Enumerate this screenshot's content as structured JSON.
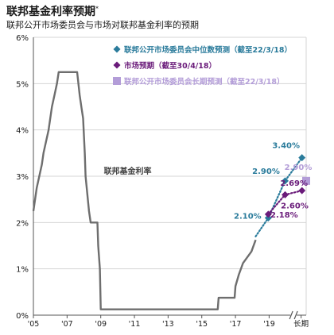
{
  "header": {
    "title": "联邦基金利率预期",
    "title_mark": "*",
    "subtitle": "联邦公开市场委员会与市场对联邦基金利率的预期"
  },
  "chart_data": {
    "type": "line",
    "y_ticks": [
      "0%",
      "1%",
      "2%",
      "3%",
      "4%",
      "5%",
      "6%"
    ],
    "y_range": [
      0,
      6
    ],
    "x_range": [
      2005,
      2021.2
    ],
    "x_ticks": [
      {
        "label": "'05",
        "x": 2005
      },
      {
        "label": "'07",
        "x": 2007
      },
      {
        "label": "'09",
        "x": 2009
      },
      {
        "label": "'11",
        "x": 2011
      },
      {
        "label": "'13",
        "x": 2013
      },
      {
        "label": "'15",
        "x": 2015
      },
      {
        "label": "'17",
        "x": 2017
      },
      {
        "label": "'19",
        "x": 2019
      },
      {
        "label": "长期",
        "x": 2020.9
      }
    ],
    "grid": true,
    "legend_position": "top-right",
    "colors": {
      "fed_funds": "#6e6e6e",
      "fomc": "#2a7b9b",
      "market": "#6a1b7a",
      "longrun": "#b39dd8",
      "text": "#1a1a1a",
      "grid": "#d4d4d4"
    },
    "legend": [
      {
        "label": "联邦公开市场委员会中位数预测（截至22/3/18）",
        "marker": "diamond",
        "color": "#2a7b9b"
      },
      {
        "label": "市场预期（截至30/4/18）",
        "marker": "diamond",
        "color": "#6a1b7a"
      },
      {
        "label": "联邦公开市场委员会长期预测（截至22/3/18）",
        "marker": "square",
        "color": "#b39dd8"
      }
    ],
    "series_label": "联邦基金利率",
    "fed_funds": [
      [
        2005.0,
        2.25
      ],
      [
        2005.1,
        2.5
      ],
      [
        2005.2,
        2.75
      ],
      [
        2005.35,
        3.0
      ],
      [
        2005.5,
        3.25
      ],
      [
        2005.6,
        3.5
      ],
      [
        2005.75,
        3.75
      ],
      [
        2005.9,
        4.0
      ],
      [
        2006.0,
        4.25
      ],
      [
        2006.1,
        4.5
      ],
      [
        2006.25,
        4.75
      ],
      [
        2006.4,
        5.0
      ],
      [
        2006.5,
        5.25
      ],
      [
        2007.6,
        5.25
      ],
      [
        2007.75,
        4.75
      ],
      [
        2007.85,
        4.5
      ],
      [
        2007.95,
        4.25
      ],
      [
        2008.05,
        3.5
      ],
      [
        2008.1,
        3.0
      ],
      [
        2008.3,
        2.25
      ],
      [
        2008.4,
        2.0
      ],
      [
        2008.8,
        2.0
      ],
      [
        2008.85,
        1.5
      ],
      [
        2008.95,
        1.0
      ],
      [
        2009.0,
        0.125
      ],
      [
        2015.95,
        0.125
      ],
      [
        2016.0,
        0.375
      ],
      [
        2016.95,
        0.375
      ],
      [
        2017.0,
        0.625
      ],
      [
        2017.2,
        0.875
      ],
      [
        2017.45,
        1.125
      ],
      [
        2017.95,
        1.375
      ],
      [
        2018.2,
        1.625
      ]
    ],
    "fomc_median": {
      "points": [
        [
          2018.95,
          2.1
        ],
        [
          2019.95,
          2.9
        ],
        [
          2020.95,
          3.4
        ]
      ],
      "labels": [
        "2.10%",
        "2.90%",
        "3.40%"
      ],
      "dotted_from": [
        2018.2,
        1.7
      ]
    },
    "market": {
      "points": [
        [
          2018.95,
          2.18
        ],
        [
          2019.95,
          2.6
        ],
        [
          2020.95,
          2.69
        ]
      ],
      "labels": [
        "2.18%",
        "2.60%",
        "2.69%"
      ]
    },
    "longrun": {
      "point": [
        2021.2,
        2.9
      ],
      "label": "2.90%"
    }
  }
}
